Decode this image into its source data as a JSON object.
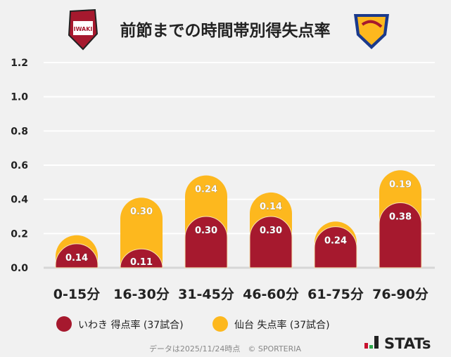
{
  "chart_data": {
    "type": "bar",
    "stacked": true,
    "title": "前節までの時間帯別得失点率",
    "categories": [
      "0-15分",
      "16-30分",
      "31-45分",
      "46-60分",
      "61-75分",
      "76-90分"
    ],
    "series": [
      {
        "name": "いわき 得点率 (37試合)",
        "color": "#a6192e",
        "values": [
          0.14,
          0.11,
          0.3,
          0.3,
          0.24,
          0.38
        ],
        "labels": [
          "0.14",
          "0.11",
          "0.30",
          "0.30",
          "0.24",
          "0.38"
        ]
      },
      {
        "name": "仙台 失点率 (37試合)",
        "color": "#fdb81e",
        "values": [
          0.05,
          0.3,
          0.24,
          0.14,
          0.03,
          0.19
        ],
        "labels": [
          "",
          "0.30",
          "0.24",
          "0.14",
          "",
          "0.19"
        ]
      }
    ],
    "ylim": [
      0,
      1.2
    ],
    "yticks": [
      "0.0",
      "0.2",
      "0.4",
      "0.6",
      "0.8",
      "1.0",
      "1.2"
    ],
    "grid": true,
    "legend": "bottom"
  },
  "logos": {
    "home": "IWAKI FC",
    "away": "VEGALTA"
  },
  "footer": {
    "note": "データは2025/11/24時点　© SPORTERIA",
    "brand": "STATs"
  }
}
